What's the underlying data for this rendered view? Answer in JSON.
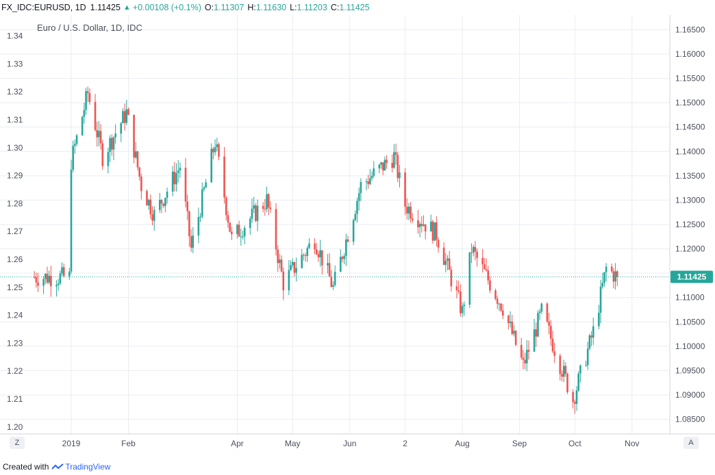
{
  "header": {
    "symbol": "FX_IDC:EURUSD, 1D",
    "last": "1.11425",
    "change": "+0.00108 (+0.1%)",
    "open_label": "O:",
    "open": "1.11307",
    "high_label": "H:",
    "high": "1.11630",
    "low_label": "L:",
    "low": "1.11203",
    "close_label": "C:",
    "close": "1.11425"
  },
  "footer": {
    "created_with": "Created with",
    "brand": "TradingView"
  },
  "buttons": {
    "zoom": "Z",
    "auto": "A"
  },
  "colors": {
    "up": "#26a69a",
    "down": "#ef5350",
    "grid": "#e9edf2",
    "price_line": "#26a69a",
    "axis_text": "#4a4f5c"
  },
  "chart_data": {
    "type": "candlestick",
    "title": "Euro / U.S. Dollar, 1D, IDC",
    "left_axis": {
      "ticks": [
        1.2,
        1.21,
        1.22,
        1.23,
        1.24,
        1.25,
        1.26,
        1.27,
        1.28,
        1.29,
        1.3,
        1.31,
        1.32,
        1.33,
        1.34
      ],
      "labels": [
        "1.20",
        "1.21",
        "1.22",
        "1.23",
        "1.24",
        "1.25",
        "1.26",
        "1.27",
        "1.28",
        "1.29",
        "1.30",
        "1.31",
        "1.32",
        "1.33",
        "1.34"
      ]
    },
    "right_axis": {
      "ticks": [
        1.085,
        1.09,
        1.095,
        1.1,
        1.105,
        1.11,
        1.115,
        1.12,
        1.125,
        1.13,
        1.135,
        1.14,
        1.145,
        1.15,
        1.155,
        1.16,
        1.165
      ],
      "labels": [
        "1.08500",
        "1.09000",
        "1.09500",
        "1.10000",
        "1.10500",
        "1.11000",
        null,
        "1.12000",
        "1.12500",
        "1.13000",
        "1.13500",
        "1.14000",
        "1.14500",
        "1.15000",
        "1.15500",
        "1.16000",
        "1.16500"
      ],
      "range": [
        1.082,
        1.168
      ]
    },
    "x_axis": {
      "labels": [
        "2019",
        "Feb",
        "Apr",
        "May",
        "Jun",
        "2",
        "Aug",
        "Sep",
        "Oct",
        "Nov"
      ],
      "dates": [
        "2019-01-01",
        "2019-02-01",
        "2019-04-01",
        "2019-05-01",
        "2019-06-01",
        "2019-07-01",
        "2019-08-01",
        "2019-09-01",
        "2019-10-01",
        "2019-11-01"
      ]
    },
    "last_price": 1.11425,
    "last_price_label": "1.11425",
    "grid": true,
    "path_keypoints": [
      {
        "x": "2019-01-01",
        "price": 1.138
      },
      {
        "x": "2019-01-10",
        "price": 1.152
      },
      {
        "x": "2019-01-18",
        "price": 1.139
      },
      {
        "x": "2019-01-31",
        "price": 1.148
      },
      {
        "x": "2019-02-08",
        "price": 1.133
      },
      {
        "x": "2019-02-15",
        "price": 1.127
      },
      {
        "x": "2019-03-01",
        "price": 1.137
      },
      {
        "x": "2019-03-07",
        "price": 1.12
      },
      {
        "x": "2019-03-20",
        "price": 1.142
      },
      {
        "x": "2019-03-29",
        "price": 1.122
      },
      {
        "x": "2019-04-17",
        "price": 1.13
      },
      {
        "x": "2019-04-26",
        "price": 1.113
      },
      {
        "x": "2019-05-13",
        "price": 1.122
      },
      {
        "x": "2019-05-23",
        "price": 1.112
      },
      {
        "x": "2019-06-07",
        "price": 1.133
      },
      {
        "x": "2019-06-25",
        "price": 1.139
      },
      {
        "x": "2019-07-01",
        "price": 1.129
      },
      {
        "x": "2019-07-18",
        "price": 1.123
      },
      {
        "x": "2019-08-01",
        "price": 1.107
      },
      {
        "x": "2019-08-06",
        "price": 1.12
      },
      {
        "x": "2019-08-23",
        "price": 1.108
      },
      {
        "x": "2019-09-03",
        "price": 1.096
      },
      {
        "x": "2019-09-13",
        "price": 1.107
      },
      {
        "x": "2019-09-30",
        "price": 1.089
      },
      {
        "x": "2019-10-11",
        "price": 1.103
      },
      {
        "x": "2019-10-18",
        "price": 1.116
      },
      {
        "x": "2019-10-24",
        "price": 1.1142
      }
    ]
  }
}
